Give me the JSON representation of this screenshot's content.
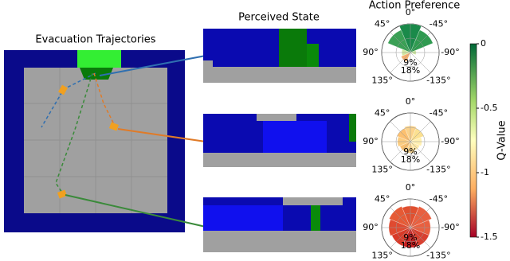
{
  "titles": {
    "trajectories": "Evacuation Trajectories",
    "perceived": "Perceived State",
    "preference": "Action Preference"
  },
  "polar": {
    "angle_labels": [
      "0°",
      "45°",
      "-45°",
      "90°",
      "-90°",
      "135°",
      "-135°"
    ],
    "radial_labels": [
      "9%",
      "18%"
    ]
  },
  "colorbar": {
    "label": "Q-Value",
    "ticks": [
      0,
      -0.5,
      -1,
      -1.5
    ],
    "lim": [
      -1.5,
      0
    ]
  }
}
